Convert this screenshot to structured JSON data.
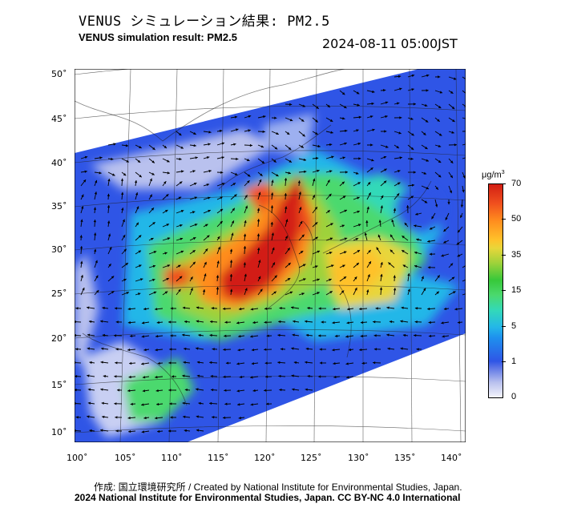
{
  "header": {
    "title_jp": "VENUS シミュレーション結果: PM2.5",
    "title_en": "VENUS simulation result: PM2.5",
    "timestamp": "2024-08-11 05:00JST"
  },
  "map": {
    "lat_labels": [
      "50˚",
      "45˚",
      "40˚",
      "35˚",
      "30˚",
      "25˚",
      "20˚",
      "15˚",
      "10˚"
    ],
    "lon_labels": [
      "100˚",
      "105˚",
      "110˚",
      "115˚",
      "120˚",
      "125˚",
      "130˚",
      "135˚",
      "140˚"
    ]
  },
  "colorbar": {
    "unit": "μg/m",
    "unit_sup": "3",
    "ticks": [
      "70",
      "50",
      "35",
      "15",
      "5",
      "1",
      "0"
    ],
    "colors": {
      "low": "#f4f4fb",
      "blue": "#2f55e6",
      "cyan": "#24b7e8",
      "green": "#37c83a",
      "yellow": "#e8d63a",
      "orange": "#ff8c1e",
      "red": "#d21e14"
    }
  },
  "footer": {
    "credit_line1": "作成: 国立環境研究所 / Created by National Institute for Environmental Studies, Japan.",
    "credit_line2": "2024 National Institute for Environmental Studies, Japan. CC BY-NC 4.0 International"
  }
}
